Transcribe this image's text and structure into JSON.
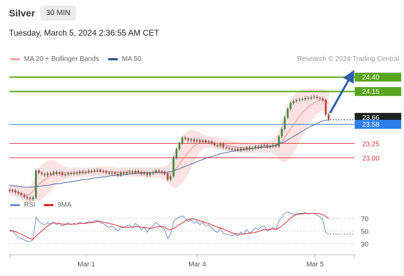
{
  "header": {
    "instrument": "Silver",
    "timeframe": "30 MIN",
    "datetime": "Tuesday, March 5, 2024 2:36:55 AM CET"
  },
  "legend": {
    "bollinger": {
      "label": "MA 20 + Bollinger Bands",
      "color": "#f4a3a3"
    },
    "ma50": {
      "label": "MA 50",
      "color": "#2d4f8e"
    },
    "credit": "Research © 2024 Trading Central"
  },
  "rsi_legend": {
    "rsi": {
      "label": "RSI",
      "color": "#6e8fd6"
    },
    "ma9": {
      "label": "9MA",
      "color": "#e32626"
    }
  },
  "chart_data": {
    "type": "candlestick",
    "x_ticks": [
      "Mar 1",
      "Mar 4",
      "Mar 5"
    ],
    "price_levels": [
      {
        "value": "24.40",
        "kind": "resistance",
        "color": "#5aa51e"
      },
      {
        "value": "24.15",
        "kind": "resistance",
        "color": "#5aa51e"
      },
      {
        "value": "23.66",
        "kind": "last",
        "color": "#222222"
      },
      {
        "value": "23.58",
        "kind": "pivot",
        "color": "#2f80ed"
      },
      {
        "value": "23.25",
        "kind": "support",
        "color": "#e03c3c"
      },
      {
        "value": "23.00",
        "kind": "support",
        "color": "#e03c3c"
      }
    ],
    "price_range": [
      22.35,
      24.55
    ],
    "close_series": [
      22.42,
      22.43,
      22.4,
      22.38,
      22.35,
      22.32,
      22.3,
      22.28,
      22.31,
      22.78,
      22.74,
      22.72,
      22.7,
      22.73,
      22.71,
      22.75,
      22.72,
      22.74,
      22.7,
      22.71,
      22.73,
      22.72,
      22.74,
      22.73,
      22.76,
      22.74,
      22.75,
      22.77,
      22.76,
      22.78,
      22.79,
      22.77,
      22.76,
      22.74,
      22.73,
      22.74,
      22.72,
      22.7,
      22.74,
      22.73,
      22.75,
      22.76,
      22.74,
      22.77,
      22.75,
      22.72,
      22.74,
      22.7,
      22.73,
      22.75,
      22.78,
      22.76,
      22.74,
      22.72,
      22.62,
      22.68,
      23.0,
      23.15,
      23.25,
      23.35,
      23.33,
      23.3,
      23.32,
      23.29,
      23.31,
      23.28,
      23.3,
      23.27,
      23.28,
      23.25,
      23.22,
      23.2,
      23.24,
      23.18,
      23.17,
      23.16,
      23.14,
      23.15,
      23.13,
      23.16,
      23.14,
      23.18,
      23.15,
      23.17,
      23.2,
      23.18,
      23.21,
      23.22,
      23.19,
      23.2,
      23.22,
      23.2,
      23.37,
      23.5,
      23.7,
      23.85,
      23.95,
      23.98,
      24.0,
      24.01,
      24.02,
      24.04,
      24.03,
      24.05,
      24.06,
      24.04,
      24.03,
      24.0,
      23.75,
      23.66
    ],
    "ma20_series": [
      22.45,
      22.44,
      22.42,
      22.4,
      22.38,
      22.36,
      22.35,
      22.37,
      22.42,
      22.48,
      22.54,
      22.58,
      22.62,
      22.66,
      22.69,
      22.72,
      22.73,
      22.74,
      22.74,
      22.74,
      22.74,
      22.74,
      22.74,
      22.74,
      22.74,
      22.74,
      22.75,
      22.75,
      22.75,
      22.76,
      22.76,
      22.76,
      22.76,
      22.76,
      22.76,
      22.76,
      22.75,
      22.75,
      22.75,
      22.75,
      22.75,
      22.75,
      22.75,
      22.75,
      22.75,
      22.75,
      22.74,
      22.74,
      22.74,
      22.74,
      22.74,
      22.74,
      22.74,
      22.73,
      22.72,
      22.73,
      22.76,
      22.82,
      22.89,
      22.96,
      23.03,
      23.09,
      23.15,
      23.2,
      23.24,
      23.27,
      23.28,
      23.28,
      23.28,
      23.27,
      23.26,
      23.25,
      23.24,
      23.23,
      23.22,
      23.21,
      23.2,
      23.19,
      23.18,
      23.18,
      23.17,
      23.17,
      23.17,
      23.17,
      23.17,
      23.17,
      23.18,
      23.18,
      23.18,
      23.19,
      23.19,
      23.2,
      23.23,
      23.28,
      23.35,
      23.43,
      23.51,
      23.58,
      23.65,
      23.72,
      23.78,
      23.83,
      23.88,
      23.92,
      23.95,
      23.98,
      24.0,
      24.0,
      23.98,
      23.95
    ],
    "ma50_series": [
      22.52,
      22.51,
      22.51,
      22.5,
      22.5,
      22.49,
      22.49,
      22.49,
      22.49,
      22.5,
      22.5,
      22.51,
      22.52,
      22.52,
      22.53,
      22.54,
      22.55,
      22.55,
      22.56,
      22.57,
      22.58,
      22.58,
      22.59,
      22.6,
      22.61,
      22.62,
      22.62,
      22.63,
      22.64,
      22.65,
      22.65,
      22.66,
      22.67,
      22.67,
      22.68,
      22.69,
      22.69,
      22.7,
      22.7,
      22.71,
      22.71,
      22.72,
      22.72,
      22.73,
      22.73,
      22.73,
      22.74,
      22.74,
      22.74,
      22.74,
      22.75,
      22.75,
      22.75,
      22.75,
      22.75,
      22.76,
      22.77,
      22.79,
      22.81,
      22.83,
      22.85,
      22.87,
      22.89,
      22.91,
      22.93,
      22.95,
      22.97,
      22.99,
      23.01,
      23.02,
      23.04,
      23.05,
      23.07,
      23.08,
      23.09,
      23.1,
      23.11,
      23.12,
      23.13,
      23.13,
      23.14,
      23.15,
      23.15,
      23.16,
      23.17,
      23.17,
      23.18,
      23.19,
      23.19,
      23.2,
      23.21,
      23.22,
      23.24,
      23.26,
      23.28,
      23.31,
      23.34,
      23.37,
      23.4,
      23.43,
      23.46,
      23.49,
      23.52,
      23.55,
      23.57,
      23.6,
      23.62,
      23.64,
      23.65,
      23.66
    ],
    "band_width": [
      0.1,
      0.1,
      0.1,
      0.11,
      0.11,
      0.12,
      0.12,
      0.14,
      0.18,
      0.24,
      0.28,
      0.3,
      0.3,
      0.29,
      0.27,
      0.24,
      0.2,
      0.16,
      0.13,
      0.11,
      0.1,
      0.09,
      0.09,
      0.09,
      0.08,
      0.08,
      0.08,
      0.08,
      0.08,
      0.08,
      0.08,
      0.08,
      0.08,
      0.08,
      0.08,
      0.08,
      0.08,
      0.08,
      0.08,
      0.08,
      0.08,
      0.08,
      0.08,
      0.08,
      0.08,
      0.09,
      0.09,
      0.09,
      0.09,
      0.09,
      0.09,
      0.09,
      0.1,
      0.12,
      0.15,
      0.2,
      0.28,
      0.34,
      0.38,
      0.4,
      0.4,
      0.38,
      0.34,
      0.28,
      0.22,
      0.17,
      0.13,
      0.11,
      0.1,
      0.1,
      0.1,
      0.1,
      0.1,
      0.1,
      0.1,
      0.1,
      0.09,
      0.09,
      0.09,
      0.09,
      0.09,
      0.09,
      0.09,
      0.09,
      0.09,
      0.09,
      0.09,
      0.1,
      0.1,
      0.1,
      0.12,
      0.16,
      0.25,
      0.35,
      0.43,
      0.48,
      0.5,
      0.5,
      0.48,
      0.44,
      0.4,
      0.36,
      0.32,
      0.28,
      0.25,
      0.22,
      0.2,
      0.19,
      0.2,
      0.22
    ],
    "rsi_ticks": [
      "70",
      "50",
      "30"
    ],
    "rsi_range": [
      20,
      85
    ],
    "rsi_series": [
      52,
      50,
      45,
      40,
      38,
      36,
      34,
      33,
      36,
      72,
      65,
      62,
      60,
      63,
      61,
      64,
      60,
      62,
      58,
      60,
      63,
      60,
      62,
      61,
      64,
      62,
      63,
      65,
      64,
      66,
      67,
      63,
      62,
      58,
      56,
      58,
      54,
      50,
      56,
      55,
      58,
      60,
      55,
      62,
      58,
      52,
      56,
      48,
      55,
      58,
      64,
      60,
      56,
      52,
      38,
      45,
      64,
      70,
      72,
      74,
      70,
      65,
      68,
      62,
      66,
      60,
      64,
      58,
      60,
      55,
      50,
      48,
      55,
      46,
      45,
      44,
      42,
      45,
      42,
      48,
      45,
      52,
      46,
      50,
      55,
      52,
      57,
      58,
      50,
      52,
      56,
      52,
      66,
      72,
      78,
      80,
      78,
      76,
      77,
      78,
      78,
      79,
      77,
      78,
      78,
      75,
      72,
      68,
      48,
      45
    ],
    "rsi_ma9_series": [
      50,
      50,
      49,
      47,
      45,
      43,
      40,
      38,
      37,
      42,
      46,
      50,
      54,
      58,
      61,
      63,
      62,
      62,
      61,
      61,
      61,
      61,
      61,
      61,
      62,
      62,
      62,
      63,
      63,
      64,
      65,
      65,
      64,
      63,
      62,
      61,
      60,
      58,
      57,
      56,
      56,
      56,
      56,
      57,
      57,
      56,
      56,
      55,
      54,
      55,
      56,
      57,
      57,
      56,
      53,
      52,
      54,
      57,
      60,
      63,
      66,
      68,
      69,
      69,
      68,
      66,
      65,
      63,
      62,
      60,
      58,
      56,
      55,
      53,
      51,
      49,
      47,
      46,
      45,
      45,
      45,
      46,
      47,
      47,
      48,
      49,
      51,
      52,
      52,
      53,
      53,
      53,
      55,
      58,
      62,
      66,
      70,
      74,
      76,
      77,
      77,
      78,
      78,
      78,
      78,
      78,
      77,
      76,
      73,
      70
    ]
  }
}
